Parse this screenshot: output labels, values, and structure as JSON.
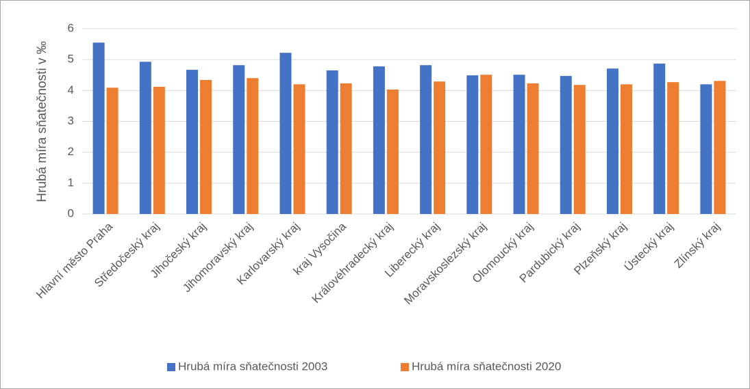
{
  "chart_data": {
    "type": "bar",
    "y_label": "Hrubá míra sňatečnosti v ‰",
    "categories": [
      "Hlavní město Praha",
      "Středočeský kraj",
      "Jihočeský kraj",
      "Jihomoravský kraj",
      "Karlovarský kraj",
      "kraj Vysočina",
      "Královéhradecký kraj",
      "Liberecký kraj",
      "Moravskoslezský kraj",
      "Olomoucký kraj",
      "Pardubický kraj",
      "Plzeňský kraj",
      "Ústecký kraj",
      "Zlínský kraj"
    ],
    "series": [
      {
        "name": "Hrubá míra sňatečnosti 2003",
        "color": "#4472c4",
        "values": [
          5.55,
          4.93,
          4.67,
          4.82,
          5.22,
          4.65,
          4.78,
          4.82,
          4.49,
          4.51,
          4.47,
          4.71,
          4.87,
          4.2
        ]
      },
      {
        "name": "Hrubá míra sňatečnosti 2020",
        "color": "#ed7d31",
        "values": [
          4.09,
          4.12,
          4.34,
          4.4,
          4.2,
          4.23,
          4.03,
          4.29,
          4.51,
          4.23,
          4.18,
          4.2,
          4.27,
          4.31
        ]
      }
    ],
    "ylim": [
      0,
      6
    ],
    "yticks": [
      0,
      1,
      2,
      3,
      4,
      5,
      6
    ],
    "grid": true,
    "legend": "bottom"
  }
}
